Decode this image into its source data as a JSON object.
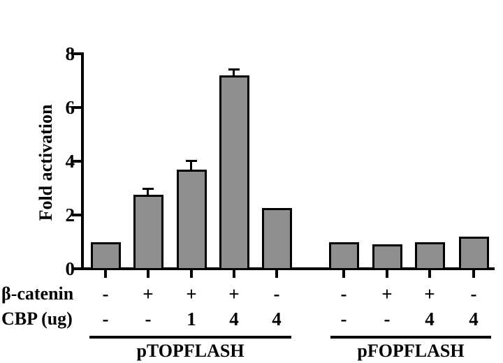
{
  "chart_data": {
    "type": "bar",
    "title": "",
    "ylabel": "Fold activation",
    "xlabel": "",
    "ylim": [
      0,
      8
    ],
    "yticks": [
      0,
      2,
      4,
      6,
      8
    ],
    "grid": false,
    "legend": "none",
    "bar_color": "#8f8f8f",
    "bar_border_color": "#000000",
    "axis_color": "#000000",
    "error_bars": "shown on pTOPFLASH bars 2-4 only",
    "condition_rows": [
      {
        "key": "beta_catenin",
        "label": "β-catenin"
      },
      {
        "key": "cbp",
        "label": "CBP (ug)"
      }
    ],
    "groups": [
      {
        "label": "pTOPFLASH",
        "bars": [
          {
            "value": 1.0,
            "error": 0,
            "beta_catenin": "-",
            "cbp": "-"
          },
          {
            "value": 2.75,
            "error": 0.2,
            "beta_catenin": "+",
            "cbp": "-"
          },
          {
            "value": 3.7,
            "error": 0.3,
            "beta_catenin": "+",
            "cbp": "1"
          },
          {
            "value": 7.2,
            "error": 0.2,
            "beta_catenin": "+",
            "cbp": "4"
          },
          {
            "value": 2.25,
            "error": 0,
            "beta_catenin": "-",
            "cbp": "4"
          }
        ]
      },
      {
        "label": "pFOPFLASH",
        "bars": [
          {
            "value": 1.0,
            "error": 0,
            "beta_catenin": "-",
            "cbp": "-"
          },
          {
            "value": 0.9,
            "error": 0,
            "beta_catenin": "+",
            "cbp": "-"
          },
          {
            "value": 1.0,
            "error": 0,
            "beta_catenin": "+",
            "cbp": "4"
          },
          {
            "value": 1.2,
            "error": 0,
            "beta_catenin": "-",
            "cbp": "4"
          }
        ]
      }
    ]
  }
}
